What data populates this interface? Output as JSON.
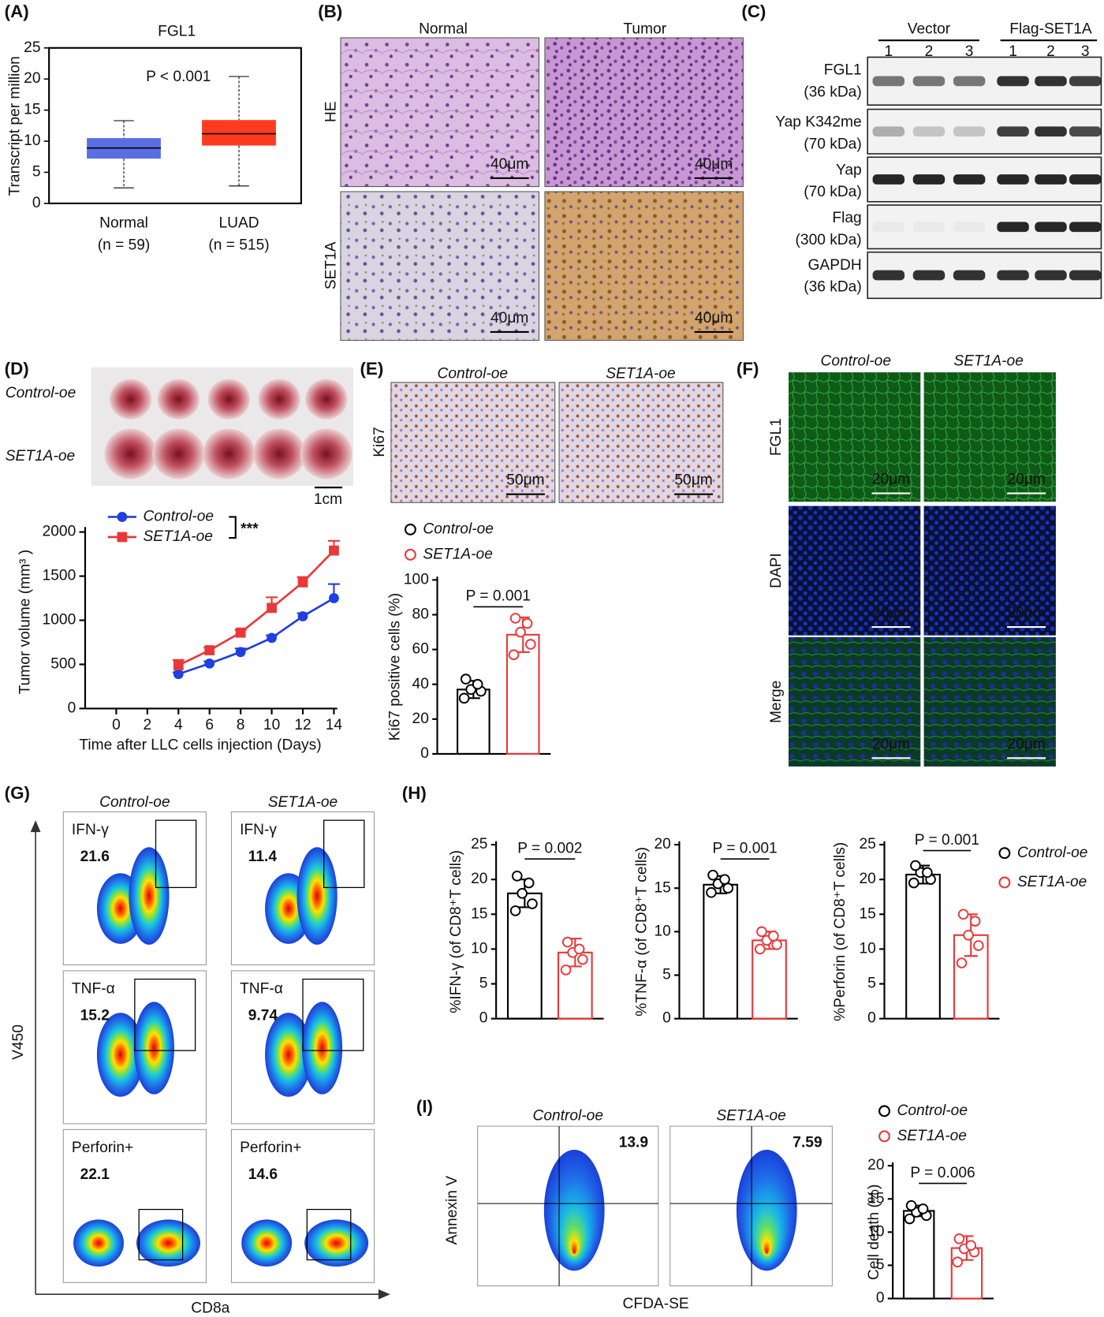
{
  "panel_labels": [
    "(A)",
    "(B)",
    "(C)",
    "(D)",
    "(E)",
    "(F)",
    "(G)",
    "(H)",
    "(I)"
  ],
  "histology": {
    "columns": [
      "Normal",
      "Tumor"
    ],
    "rows": [
      "HE",
      "SET1A"
    ],
    "scale_bars": [
      "40μm",
      "40μm",
      "40μm",
      "40μm"
    ]
  },
  "western_blot": {
    "groups": [
      "Vector",
      "Flag-SET1A"
    ],
    "lanes": [
      "1",
      "2",
      "3",
      "1",
      "2",
      "3"
    ],
    "rows": [
      {
        "protein": "FGL1",
        "size": "(36 kDa)"
      },
      {
        "protein": "Yap K342me",
        "size": "(70 kDa)"
      },
      {
        "protein": "Yap",
        "size": "(70 kDa)"
      },
      {
        "protein": "Flag",
        "size": "(300 kDa)"
      },
      {
        "protein": "GAPDH",
        "size": "(36 kDa)"
      }
    ]
  },
  "tumor_photo": {
    "rows": [
      "Control-oe",
      "SET1A-oe"
    ],
    "scale_bar": "1cm"
  },
  "ki67_ihc": {
    "columns": [
      "Control-oe",
      "SET1A-oe"
    ],
    "row": "Ki67",
    "scale_bars": [
      "50μm",
      "50μm"
    ]
  },
  "immunofluorescence": {
    "columns": [
      "Control-oe",
      "SET1A-oe"
    ],
    "rows": [
      "FGL1",
      "DAPI",
      "Merge"
    ],
    "scale_bars": [
      "20μm",
      "20μm",
      "20μm",
      "20μm",
      "20μm",
      "20μm"
    ]
  },
  "flow_cd8": {
    "columns": [
      "Control-oe",
      "SET1A-oe"
    ],
    "y_axis": "V450",
    "x_axis": "CD8a",
    "rows": [
      {
        "marker": "IFN-γ",
        "values": [
          "21.6",
          "11.4"
        ]
      },
      {
        "marker": "TNF-α",
        "values": [
          "15.2",
          "9.74"
        ]
      },
      {
        "marker": "Perforin+",
        "values": [
          "22.1",
          "14.6"
        ]
      }
    ]
  },
  "flow_apoptosis": {
    "columns": [
      "Control-oe",
      "SET1A-oe"
    ],
    "y_axis": "Annexin V",
    "x_axis": "CFDA-SE",
    "values": [
      "13.9",
      "7.59"
    ]
  },
  "chart_data": [
    {
      "type": "box",
      "title": "FGL1",
      "ylabel": "Transcript per million",
      "annotation": "P < 0.001",
      "categories": [
        "Normal",
        "LUAD"
      ],
      "category_notes": [
        "(n = 59)",
        "(n = 515)"
      ],
      "boxes": [
        {
          "color": "#5b6ee1",
          "min": 2.5,
          "q1": 7.2,
          "median": 8.9,
          "q3": 10.5,
          "max": 13.3
        },
        {
          "color": "#ff3b1f",
          "min": 2.8,
          "q1": 9.3,
          "median": 11.2,
          "q3": 13.4,
          "max": 20.4
        }
      ],
      "ylim": [
        0,
        25
      ],
      "yticks": [
        0,
        5,
        10,
        15,
        20,
        25
      ]
    },
    {
      "type": "line",
      "ylabel": "Tumor volume (mm³ )",
      "xlabel": "Time after LLC cells injection (Days)",
      "annotation": "***",
      "x": [
        4,
        6,
        8,
        10,
        12,
        14
      ],
      "xlim": [
        -2,
        14
      ],
      "xticks": [
        0,
        2,
        4,
        6,
        8,
        10,
        12,
        14
      ],
      "ylim": [
        0,
        2000
      ],
      "yticks": [
        0,
        500,
        1000,
        1500,
        2000
      ],
      "series": [
        {
          "name": "Control-oe",
          "color": "#1f3fe0",
          "values": [
            390,
            510,
            640,
            800,
            1045,
            1250
          ],
          "errors": [
            20,
            25,
            40,
            30,
            35,
            160
          ]
        },
        {
          "name": "SET1A-oe",
          "color": "#e8393a",
          "values": [
            490,
            660,
            860,
            1140,
            1430,
            1790
          ],
          "errors": [
            60,
            30,
            30,
            120,
            60,
            110
          ]
        }
      ]
    },
    {
      "type": "bardot",
      "ylabel": "Ki67 positive cells (%)",
      "annotation": "P = 0.001",
      "ylim": [
        0,
        100
      ],
      "yticks": [
        0,
        20,
        40,
        60,
        80,
        100
      ],
      "series": [
        {
          "name": "Control-oe",
          "color": "#000000",
          "value": 37,
          "error": 5,
          "points": [
            32,
            36,
            37,
            40,
            43
          ]
        },
        {
          "name": "SET1A-oe",
          "color": "#e8393a",
          "value": 68.5,
          "error": 10,
          "points": [
            57,
            63,
            70,
            75,
            78
          ]
        }
      ]
    },
    {
      "type": "bardot",
      "ylabel": "%IFN-γ (of CD8⁺T cells)",
      "annotation": "P = 0.002",
      "ylim": [
        0,
        25
      ],
      "yticks": [
        0,
        5,
        10,
        15,
        20,
        25
      ],
      "series": [
        {
          "color": "#000000",
          "value": 18,
          "error": 2,
          "points": [
            15.5,
            16.5,
            18,
            19.5,
            20.5
          ]
        },
        {
          "color": "#e8393a",
          "value": 9.5,
          "error": 2,
          "points": [
            7,
            8.5,
            9.5,
            10,
            11
          ]
        }
      ]
    },
    {
      "type": "bardot",
      "ylabel": "%TNF-α (of CD8⁺T cells)",
      "annotation": "P = 0.001",
      "ylim": [
        0,
        20
      ],
      "yticks": [
        0,
        5,
        10,
        15,
        20
      ],
      "series": [
        {
          "color": "#000000",
          "value": 15.4,
          "error": 1,
          "points": [
            14.5,
            15,
            15.5,
            16,
            16.5
          ]
        },
        {
          "color": "#e8393a",
          "value": 9,
          "error": 1,
          "points": [
            8,
            8.5,
            9,
            9.5,
            10
          ]
        }
      ]
    },
    {
      "type": "bardot",
      "ylabel": "%Perforin (of CD8⁺T cells)",
      "annotation": "P = 0.001",
      "ylim": [
        0,
        25
      ],
      "yticks": [
        0,
        5,
        10,
        15,
        20,
        25
      ],
      "series": [
        {
          "name": "Control-oe",
          "color": "#000000",
          "value": 20.7,
          "error": 1.3,
          "points": [
            19.5,
            20,
            21,
            21,
            22
          ]
        },
        {
          "name": "SET1A-oe",
          "color": "#e8393a",
          "value": 12,
          "error": 3,
          "points": [
            8,
            10.5,
            12,
            14,
            15
          ]
        }
      ]
    },
    {
      "type": "bardot",
      "ylabel": "Cell death (%)",
      "annotation": "P = 0.006",
      "ylim": [
        0,
        20
      ],
      "yticks": [
        0,
        5,
        10,
        15,
        20
      ],
      "series": [
        {
          "name": "Control-oe",
          "color": "#000000",
          "value": 13.2,
          "error": 0.8,
          "points": [
            12,
            12.5,
            13,
            13.5,
            14
          ]
        },
        {
          "name": "SET1A-oe",
          "color": "#e8393a",
          "value": 7.6,
          "error": 1.8,
          "points": [
            5.5,
            7,
            7.5,
            8,
            9
          ]
        }
      ]
    }
  ]
}
